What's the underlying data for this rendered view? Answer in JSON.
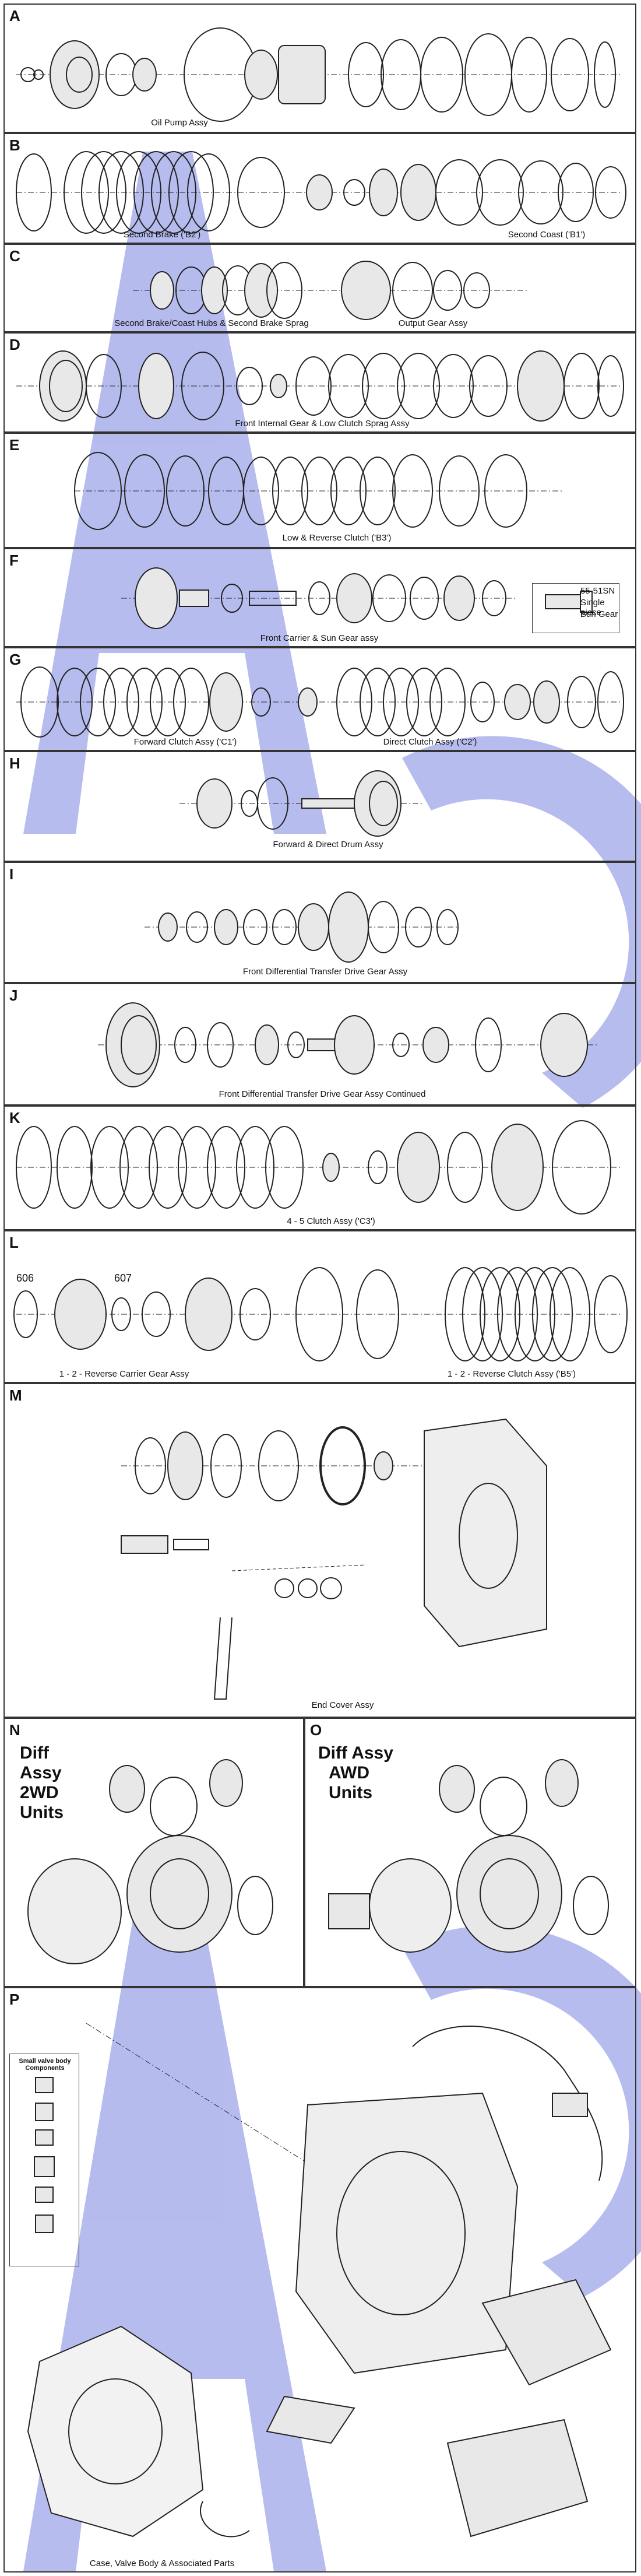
{
  "colors": {
    "watermark": "#aab0ec",
    "line": "#222222",
    "fill": "#e8e8e8"
  },
  "sections": [
    {
      "id": "A",
      "captions": [
        "Oil Pump Assy"
      ]
    },
    {
      "id": "B",
      "captions": [
        "Second Brake ('B2')",
        "Second Coast ('B1')"
      ]
    },
    {
      "id": "C",
      "captions": [
        "Second Brake/Coast Hubs & Second Brake Sprag",
        "Output Gear Assy"
      ]
    },
    {
      "id": "D",
      "captions": [
        "Front Internal Gear & Low Clutch Sprag Assy"
      ]
    },
    {
      "id": "E",
      "captions": [
        "Low & Reverse Clutch ('B3')"
      ]
    },
    {
      "id": "F",
      "captions": [
        "Front Carrier & Sun Gear assy"
      ],
      "callout": [
        "55-51SN",
        "Single piece",
        "Sun Gear"
      ]
    },
    {
      "id": "G",
      "captions": [
        "Forward Clutch Assy ('C1')",
        "Direct Clutch Assy ('C2')"
      ]
    },
    {
      "id": "H",
      "captions": [
        "Forward & Direct Drum Assy"
      ]
    },
    {
      "id": "I",
      "captions": [
        "Front Differential Transfer Drive Gear Assy"
      ]
    },
    {
      "id": "J",
      "captions": [
        "Front Differential Transfer Drive Gear Assy Continued"
      ]
    },
    {
      "id": "K",
      "captions": [
        "4 - 5 Clutch Assy ('C3')"
      ]
    },
    {
      "id": "L",
      "captions": [
        "1 - 2 - Reverse Carrier Gear Assy",
        "1 - 2 - Reverse Clutch Assy ('B5')"
      ],
      "parts": [
        "606",
        "607"
      ]
    },
    {
      "id": "M",
      "captions": [
        "End Cover Assy"
      ]
    },
    {
      "id": "N",
      "title": [
        "Diff",
        "Assy",
        "2WD",
        "Units"
      ]
    },
    {
      "id": "O",
      "title": [
        "Diff Assy",
        "AWD",
        "Units"
      ]
    },
    {
      "id": "P",
      "captions": [
        "Case, Valve Body & Associated Parts"
      ],
      "legend": "Small valve body Components"
    }
  ]
}
